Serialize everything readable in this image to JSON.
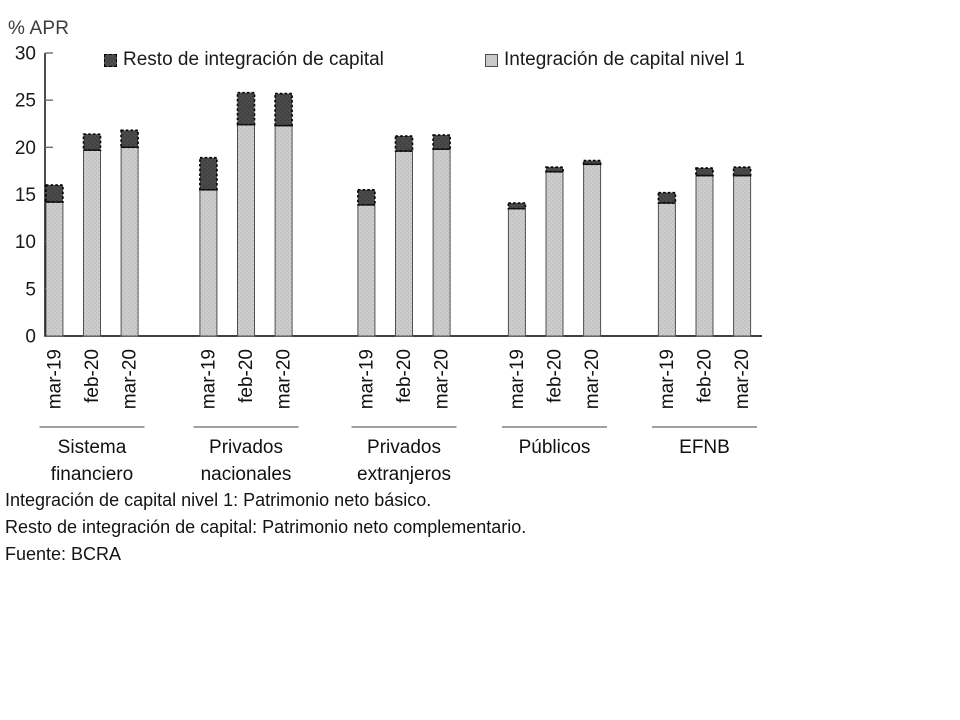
{
  "legend": {
    "items": [
      {
        "label": "Resto de integración de capital",
        "series": "resto",
        "color": "#4a4a4a"
      },
      {
        "label": "Integración de capital nivel 1",
        "series": "nivel1",
        "color": "#c9c9c9"
      }
    ]
  },
  "footnotes": [
    "Integración de capital nivel 1: Patrimonio neto básico.",
    "Resto de integración de capital: Patrimonio neto complementario.",
    "Fuente: BCRA"
  ],
  "chart_data": {
    "type": "bar",
    "stacked": true,
    "ylabel": "% APR",
    "ylim": [
      0,
      30
    ],
    "yticks": [
      0,
      5,
      10,
      15,
      20,
      25,
      30
    ],
    "grid": false,
    "legend_position": "top",
    "series_names": [
      "Integración de capital nivel 1",
      "Resto de integración de capital"
    ],
    "colors": {
      "nivel1_fill": "#cdcdcd",
      "nivel1_dot": "#b9b9b9",
      "nivel1_border": "#4f4f4f",
      "resto_fill": "#4a4a4a",
      "resto_dot": "#3a3a3a",
      "resto_border": "#000000"
    },
    "groups": [
      {
        "label": "Sistema financiero",
        "periods": [
          "mar-19",
          "feb-20",
          "mar-20"
        ],
        "nivel1": [
          14.2,
          19.7,
          20.0
        ],
        "resto": [
          1.8,
          1.7,
          1.8
        ]
      },
      {
        "label": "Privados nacionales",
        "periods": [
          "mar-19",
          "feb-20",
          "mar-20"
        ],
        "nivel1": [
          15.5,
          22.4,
          22.3
        ],
        "resto": [
          3.4,
          3.4,
          3.4
        ]
      },
      {
        "label": "Privados extranjeros",
        "periods": [
          "mar-19",
          "feb-20",
          "mar-20"
        ],
        "nivel1": [
          13.9,
          19.6,
          19.8
        ],
        "resto": [
          1.6,
          1.6,
          1.5
        ]
      },
      {
        "label": "Públicos",
        "periods": [
          "mar-19",
          "feb-20",
          "mar-20"
        ],
        "nivel1": [
          13.5,
          17.4,
          18.2
        ],
        "resto": [
          0.6,
          0.5,
          0.4
        ]
      },
      {
        "label": "EFNB",
        "periods": [
          "mar-19",
          "feb-20",
          "mar-20"
        ],
        "nivel1": [
          14.1,
          17.0,
          17.0
        ],
        "resto": [
          1.1,
          0.8,
          0.9
        ]
      }
    ]
  }
}
